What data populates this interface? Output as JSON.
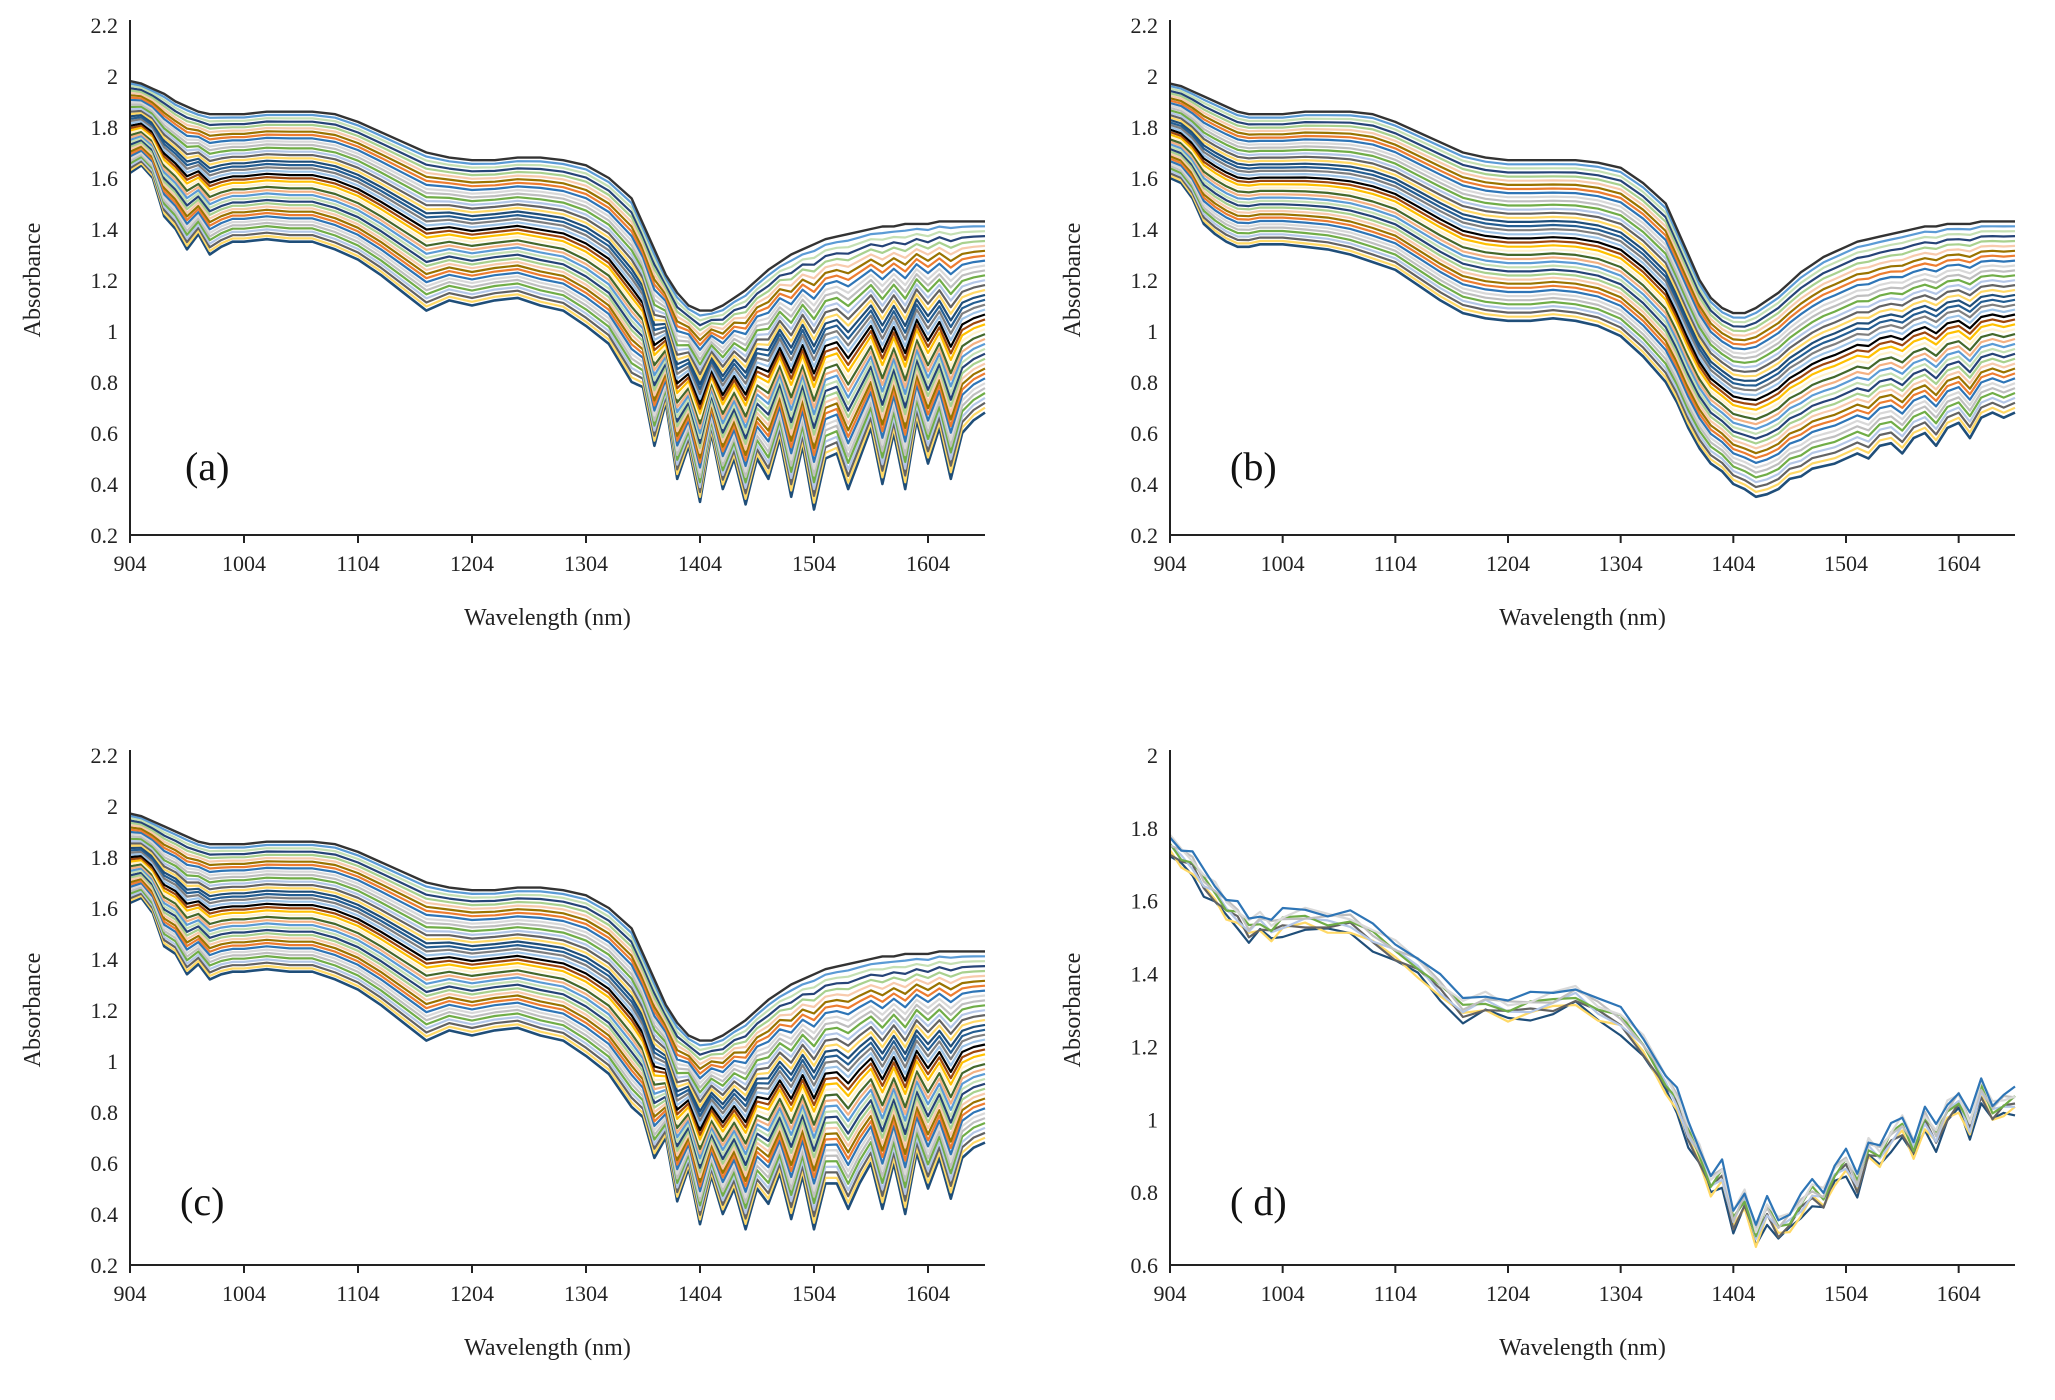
{
  "chart_data": [
    {
      "type": "line",
      "panel_label": "(a)",
      "xlabel": "Wavelength (nm)",
      "ylabel": "Absorbance",
      "xlim": [
        904,
        1654
      ],
      "ylim": [
        0.2,
        2.2
      ],
      "xticks": [
        "904",
        "1004",
        "1104",
        "1204",
        "1304",
        "1404",
        "1504",
        "1604"
      ],
      "yticks": [
        "0.2",
        "0.4",
        "0.6",
        "0.8",
        "1",
        "1.2",
        "1.4",
        "1.6",
        "1.8",
        "2",
        "2.2"
      ],
      "grid": false,
      "legend": "none",
      "series_count": 40,
      "x": [
        904,
        914,
        924,
        934,
        944,
        954,
        964,
        974,
        984,
        994,
        1004,
        1024,
        1044,
        1064,
        1084,
        1104,
        1124,
        1144,
        1164,
        1184,
        1204,
        1224,
        1244,
        1264,
        1284,
        1304,
        1324,
        1344,
        1354,
        1364,
        1374,
        1384,
        1394,
        1404,
        1414,
        1424,
        1434,
        1444,
        1454,
        1464,
        1474,
        1484,
        1494,
        1504,
        1514,
        1524,
        1534,
        1544,
        1554,
        1564,
        1574,
        1584,
        1594,
        1604,
        1614,
        1624,
        1634,
        1644,
        1654
      ],
      "top_curve": [
        1.98,
        1.97,
        1.95,
        1.93,
        1.9,
        1.88,
        1.86,
        1.85,
        1.85,
        1.85,
        1.85,
        1.86,
        1.86,
        1.86,
        1.85,
        1.82,
        1.78,
        1.74,
        1.7,
        1.68,
        1.67,
        1.67,
        1.68,
        1.68,
        1.67,
        1.65,
        1.6,
        1.52,
        1.42,
        1.32,
        1.22,
        1.15,
        1.1,
        1.08,
        1.08,
        1.1,
        1.13,
        1.16,
        1.2,
        1.24,
        1.27,
        1.3,
        1.32,
        1.34,
        1.36,
        1.37,
        1.38,
        1.39,
        1.4,
        1.41,
        1.41,
        1.42,
        1.42,
        1.42,
        1.43,
        1.43,
        1.43,
        1.43,
        1.43
      ],
      "bottom_curve": [
        1.62,
        1.65,
        1.6,
        1.45,
        1.4,
        1.32,
        1.38,
        1.3,
        1.33,
        1.35,
        1.35,
        1.36,
        1.35,
        1.35,
        1.32,
        1.28,
        1.22,
        1.15,
        1.08,
        1.12,
        1.1,
        1.12,
        1.13,
        1.1,
        1.08,
        1.02,
        0.95,
        0.8,
        0.78,
        0.55,
        0.72,
        0.42,
        0.55,
        0.33,
        0.6,
        0.38,
        0.5,
        0.32,
        0.5,
        0.42,
        0.58,
        0.35,
        0.55,
        0.3,
        0.5,
        0.52,
        0.38,
        0.5,
        0.62,
        0.4,
        0.6,
        0.38,
        0.65,
        0.48,
        0.62,
        0.42,
        0.6,
        0.65,
        0.68
      ]
    },
    {
      "type": "line",
      "panel_label": "(b)",
      "xlabel": "Wavelength (nm)",
      "ylabel": "Absorbance",
      "xlim": [
        904,
        1654
      ],
      "ylim": [
        0.2,
        2.2
      ],
      "xticks": [
        "904",
        "1004",
        "1104",
        "1204",
        "1304",
        "1404",
        "1504",
        "1604"
      ],
      "yticks": [
        "0.2",
        "0.4",
        "0.6",
        "0.8",
        "1",
        "1.2",
        "1.4",
        "1.6",
        "1.8",
        "2",
        "2.2"
      ],
      "grid": false,
      "legend": "none",
      "series_count": 40,
      "x": [
        904,
        914,
        924,
        934,
        944,
        954,
        964,
        974,
        984,
        994,
        1004,
        1024,
        1044,
        1064,
        1084,
        1104,
        1124,
        1144,
        1164,
        1184,
        1204,
        1224,
        1244,
        1264,
        1284,
        1304,
        1324,
        1344,
        1354,
        1364,
        1374,
        1384,
        1394,
        1404,
        1414,
        1424,
        1434,
        1444,
        1454,
        1464,
        1474,
        1484,
        1494,
        1504,
        1514,
        1524,
        1534,
        1544,
        1554,
        1564,
        1574,
        1584,
        1594,
        1604,
        1614,
        1624,
        1634,
        1644,
        1654
      ],
      "top_curve": [
        1.97,
        1.96,
        1.94,
        1.92,
        1.9,
        1.88,
        1.86,
        1.85,
        1.85,
        1.85,
        1.85,
        1.86,
        1.86,
        1.86,
        1.85,
        1.82,
        1.78,
        1.74,
        1.7,
        1.68,
        1.67,
        1.67,
        1.67,
        1.67,
        1.66,
        1.64,
        1.58,
        1.5,
        1.4,
        1.3,
        1.2,
        1.13,
        1.09,
        1.07,
        1.07,
        1.09,
        1.12,
        1.15,
        1.19,
        1.23,
        1.26,
        1.29,
        1.31,
        1.33,
        1.35,
        1.36,
        1.37,
        1.38,
        1.39,
        1.4,
        1.41,
        1.41,
        1.42,
        1.42,
        1.42,
        1.43,
        1.43,
        1.43,
        1.43
      ],
      "bottom_curve": [
        1.6,
        1.58,
        1.52,
        1.42,
        1.38,
        1.35,
        1.33,
        1.33,
        1.34,
        1.34,
        1.34,
        1.33,
        1.32,
        1.3,
        1.27,
        1.24,
        1.18,
        1.12,
        1.07,
        1.05,
        1.04,
        1.04,
        1.05,
        1.04,
        1.02,
        0.98,
        0.9,
        0.8,
        0.72,
        0.62,
        0.54,
        0.48,
        0.45,
        0.4,
        0.38,
        0.35,
        0.36,
        0.38,
        0.42,
        0.43,
        0.46,
        0.47,
        0.48,
        0.5,
        0.52,
        0.5,
        0.55,
        0.56,
        0.52,
        0.58,
        0.6,
        0.55,
        0.62,
        0.64,
        0.58,
        0.66,
        0.68,
        0.66,
        0.68
      ]
    },
    {
      "type": "line",
      "panel_label": "(c)",
      "xlabel": "Wavelength (nm)",
      "ylabel": "Absorbance",
      "xlim": [
        904,
        1654
      ],
      "ylim": [
        0.2,
        2.2
      ],
      "xticks": [
        "904",
        "1004",
        "1104",
        "1204",
        "1304",
        "1404",
        "1504",
        "1604"
      ],
      "yticks": [
        "0.2",
        "0.4",
        "0.6",
        "0.8",
        "1",
        "1.2",
        "1.4",
        "1.6",
        "1.8",
        "2",
        "2.2"
      ],
      "grid": false,
      "legend": "none",
      "series_count": 40,
      "x": [
        904,
        914,
        924,
        934,
        944,
        954,
        964,
        974,
        984,
        994,
        1004,
        1024,
        1044,
        1064,
        1084,
        1104,
        1124,
        1144,
        1164,
        1184,
        1204,
        1224,
        1244,
        1264,
        1284,
        1304,
        1324,
        1344,
        1354,
        1364,
        1374,
        1384,
        1394,
        1404,
        1414,
        1424,
        1434,
        1444,
        1454,
        1464,
        1474,
        1484,
        1494,
        1504,
        1514,
        1524,
        1534,
        1544,
        1554,
        1564,
        1574,
        1584,
        1594,
        1604,
        1614,
        1624,
        1634,
        1644,
        1654
      ],
      "top_curve": [
        1.97,
        1.96,
        1.94,
        1.92,
        1.9,
        1.88,
        1.86,
        1.85,
        1.85,
        1.85,
        1.85,
        1.86,
        1.86,
        1.86,
        1.85,
        1.82,
        1.78,
        1.74,
        1.7,
        1.68,
        1.67,
        1.67,
        1.68,
        1.68,
        1.67,
        1.65,
        1.6,
        1.52,
        1.42,
        1.32,
        1.22,
        1.15,
        1.1,
        1.08,
        1.08,
        1.1,
        1.13,
        1.16,
        1.2,
        1.24,
        1.27,
        1.3,
        1.32,
        1.34,
        1.36,
        1.37,
        1.38,
        1.39,
        1.4,
        1.41,
        1.41,
        1.42,
        1.42,
        1.42,
        1.43,
        1.43,
        1.43,
        1.43,
        1.43
      ],
      "bottom_curve": [
        1.62,
        1.64,
        1.58,
        1.45,
        1.42,
        1.34,
        1.38,
        1.32,
        1.34,
        1.35,
        1.35,
        1.36,
        1.35,
        1.35,
        1.32,
        1.28,
        1.22,
        1.15,
        1.08,
        1.12,
        1.1,
        1.12,
        1.13,
        1.1,
        1.08,
        1.02,
        0.95,
        0.82,
        0.78,
        0.62,
        0.7,
        0.45,
        0.58,
        0.36,
        0.55,
        0.4,
        0.5,
        0.34,
        0.5,
        0.44,
        0.56,
        0.38,
        0.55,
        0.34,
        0.52,
        0.52,
        0.42,
        0.52,
        0.6,
        0.42,
        0.6,
        0.4,
        0.64,
        0.5,
        0.62,
        0.46,
        0.62,
        0.66,
        0.68
      ]
    },
    {
      "type": "line",
      "panel_label": "( d)",
      "xlabel": "Wavelength (nm)",
      "ylabel": "Absorbance",
      "xlim": [
        904,
        1654
      ],
      "ylim": [
        0.6,
        2
      ],
      "xticks": [
        "904",
        "1004",
        "1104",
        "1204",
        "1304",
        "1404",
        "1504",
        "1604"
      ],
      "yticks": [
        "0.6",
        "0.8",
        "1",
        "1.2",
        "1.4",
        "1.6",
        "1.8",
        "2"
      ],
      "grid": false,
      "legend": "none",
      "series_count": 8,
      "x": [
        904,
        914,
        924,
        934,
        944,
        954,
        964,
        974,
        984,
        994,
        1004,
        1024,
        1044,
        1064,
        1084,
        1104,
        1124,
        1144,
        1164,
        1184,
        1204,
        1224,
        1244,
        1264,
        1284,
        1304,
        1324,
        1344,
        1354,
        1364,
        1374,
        1384,
        1394,
        1404,
        1414,
        1424,
        1434,
        1444,
        1454,
        1464,
        1474,
        1484,
        1494,
        1504,
        1514,
        1524,
        1534,
        1544,
        1554,
        1564,
        1574,
        1584,
        1594,
        1604,
        1614,
        1624,
        1634,
        1644,
        1654
      ],
      "mean_curve": [
        1.75,
        1.72,
        1.7,
        1.65,
        1.62,
        1.58,
        1.56,
        1.52,
        1.54,
        1.52,
        1.54,
        1.55,
        1.54,
        1.54,
        1.5,
        1.46,
        1.42,
        1.36,
        1.3,
        1.32,
        1.3,
        1.31,
        1.32,
        1.34,
        1.3,
        1.27,
        1.2,
        1.1,
        1.05,
        0.96,
        0.9,
        0.82,
        0.85,
        0.72,
        0.78,
        0.68,
        0.75,
        0.7,
        0.72,
        0.76,
        0.8,
        0.78,
        0.85,
        0.88,
        0.82,
        0.92,
        0.9,
        0.95,
        0.98,
        0.92,
        1.0,
        0.95,
        1.02,
        1.05,
        0.98,
        1.08,
        1.02,
        1.04,
        1.05
      ]
    }
  ]
}
